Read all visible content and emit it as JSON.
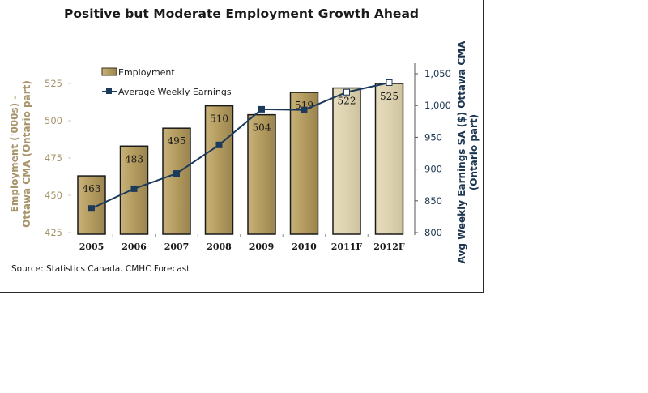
{
  "chart_data": {
    "type": "bar",
    "title": "Positive but Moderate Employment Growth Ahead",
    "categories": [
      "2005",
      "2006",
      "2007",
      "2008",
      "2009",
      "2010",
      "2011F",
      "2012F"
    ],
    "forecast_categories": [
      "2011F",
      "2012F"
    ],
    "series": [
      {
        "name": "Employment",
        "type": "bar",
        "axis": "left",
        "values": [
          463,
          483,
          495,
          510,
          504,
          519,
          522,
          525
        ],
        "labels": [
          "463",
          "483",
          "495",
          "510",
          "504",
          "519",
          "522",
          "525"
        ],
        "color": "#b39b5e",
        "forecast_color": "#ddd2b0"
      },
      {
        "name": "Average Weekly Earnings",
        "type": "line",
        "axis": "right",
        "values": [
          838,
          869,
          893,
          938,
          994,
          993,
          1021,
          1036
        ],
        "color": "#1c3a5c"
      }
    ],
    "ylabel_left": [
      "Employment ('000s) -",
      "Ottawa CMA (Ontario part)"
    ],
    "ylabel_right": [
      "Avg Weekly Earnings SA ($) Ottawa CMA",
      "(Ontario part)"
    ],
    "ylim_left": [
      425,
      525
    ],
    "yticks_left": [
      "425",
      "450",
      "475",
      "500",
      "525"
    ],
    "ylim_right": [
      800,
      1050
    ],
    "yticks_right": [
      "800",
      "850",
      "900",
      "950",
      "1,000",
      "1,050"
    ],
    "legend": [
      "Employment",
      "Average Weekly Earnings"
    ],
    "legend_position": "top-left",
    "grid": false,
    "source": "Source: Statistics Canada, CMHC Forecast",
    "colors": {
      "left_axis_text": "#a7946a",
      "right_axis_text": "#1c3550"
    }
  }
}
